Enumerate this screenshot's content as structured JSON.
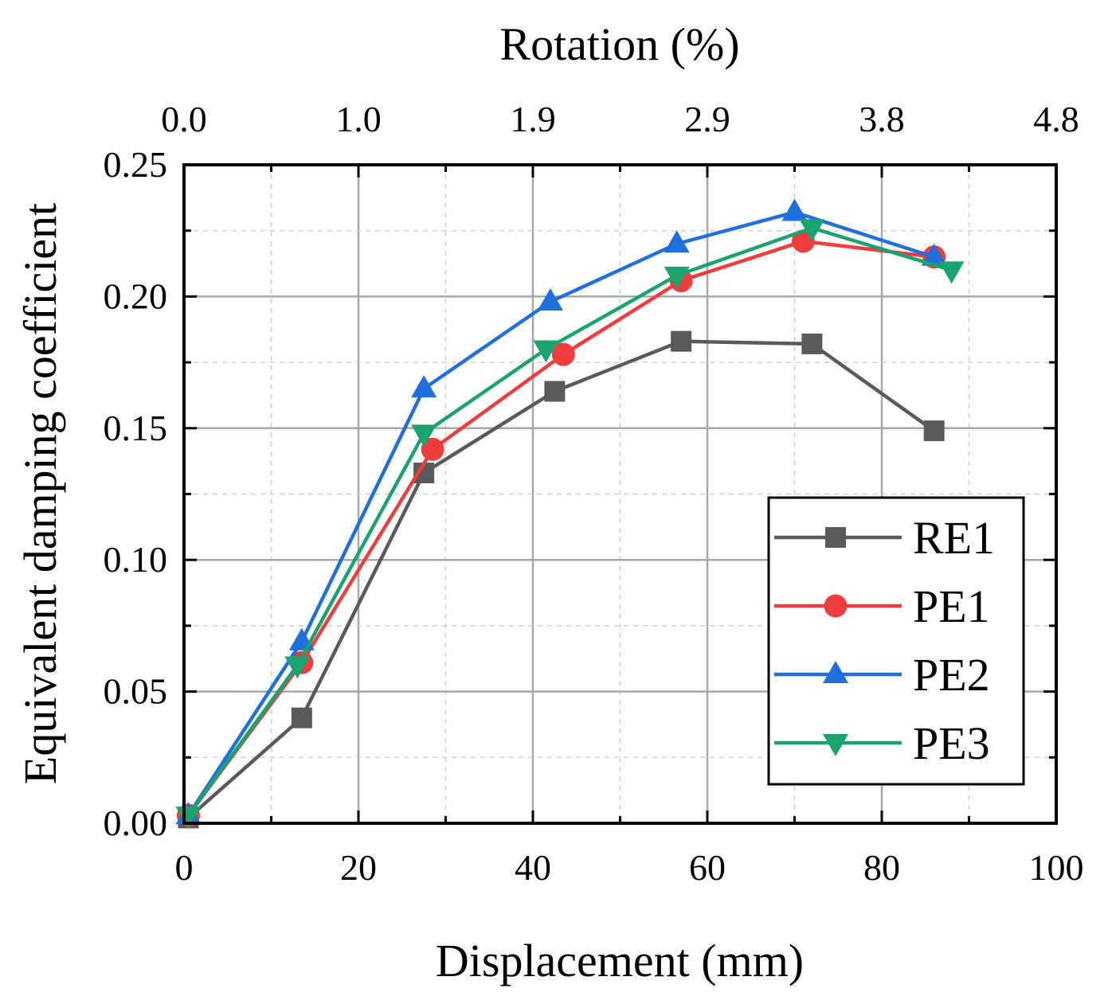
{
  "chart_data": {
    "type": "line",
    "xlabel": "Displacement (mm)",
    "ylabel": "Equivalent damping coefficient",
    "top_xlabel": "Rotation (%)",
    "xlim": [
      0,
      100
    ],
    "ylim": [
      0,
      0.25
    ],
    "x_ticks": [
      "0",
      "20",
      "40",
      "60",
      "80",
      "100"
    ],
    "x_tick_values": [
      0,
      20,
      40,
      60,
      80,
      100
    ],
    "y_ticks": [
      "0.00",
      "0.05",
      "0.10",
      "0.15",
      "0.20",
      "0.25"
    ],
    "y_tick_values": [
      0,
      0.05,
      0.1,
      0.15,
      0.2,
      0.25
    ],
    "top_ticks": [
      "0.0",
      "1.0",
      "1.9",
      "2.9",
      "3.8",
      "4.8"
    ],
    "grid": true,
    "legend_position": "right",
    "series": [
      {
        "name": "RE1",
        "color": "#5a5a5a",
        "marker": "square",
        "x": [
          0.5,
          13.5,
          27.5,
          42.5,
          57,
          72,
          86
        ],
        "y": [
          0.002,
          0.04,
          0.133,
          0.164,
          0.183,
          0.182,
          0.149
        ]
      },
      {
        "name": "PE1",
        "color": "#f03c3c",
        "marker": "circle",
        "x": [
          0.5,
          13.5,
          28.5,
          43.5,
          57,
          71,
          86
        ],
        "y": [
          0.003,
          0.061,
          0.142,
          0.178,
          0.206,
          0.221,
          0.215
        ]
      },
      {
        "name": "PE2",
        "color": "#1f6fdc",
        "marker": "triangle-up",
        "x": [
          0.5,
          13.5,
          27.5,
          42,
          56.5,
          70,
          86
        ],
        "y": [
          0.003,
          0.069,
          0.165,
          0.198,
          0.22,
          0.232,
          0.215
        ]
      },
      {
        "name": "PE3",
        "color": "#1aa36e",
        "marker": "triangle-down",
        "x": [
          0.5,
          13,
          27.5,
          41.5,
          56.5,
          72,
          88
        ],
        "y": [
          0.003,
          0.06,
          0.148,
          0.18,
          0.208,
          0.226,
          0.21
        ]
      }
    ]
  }
}
